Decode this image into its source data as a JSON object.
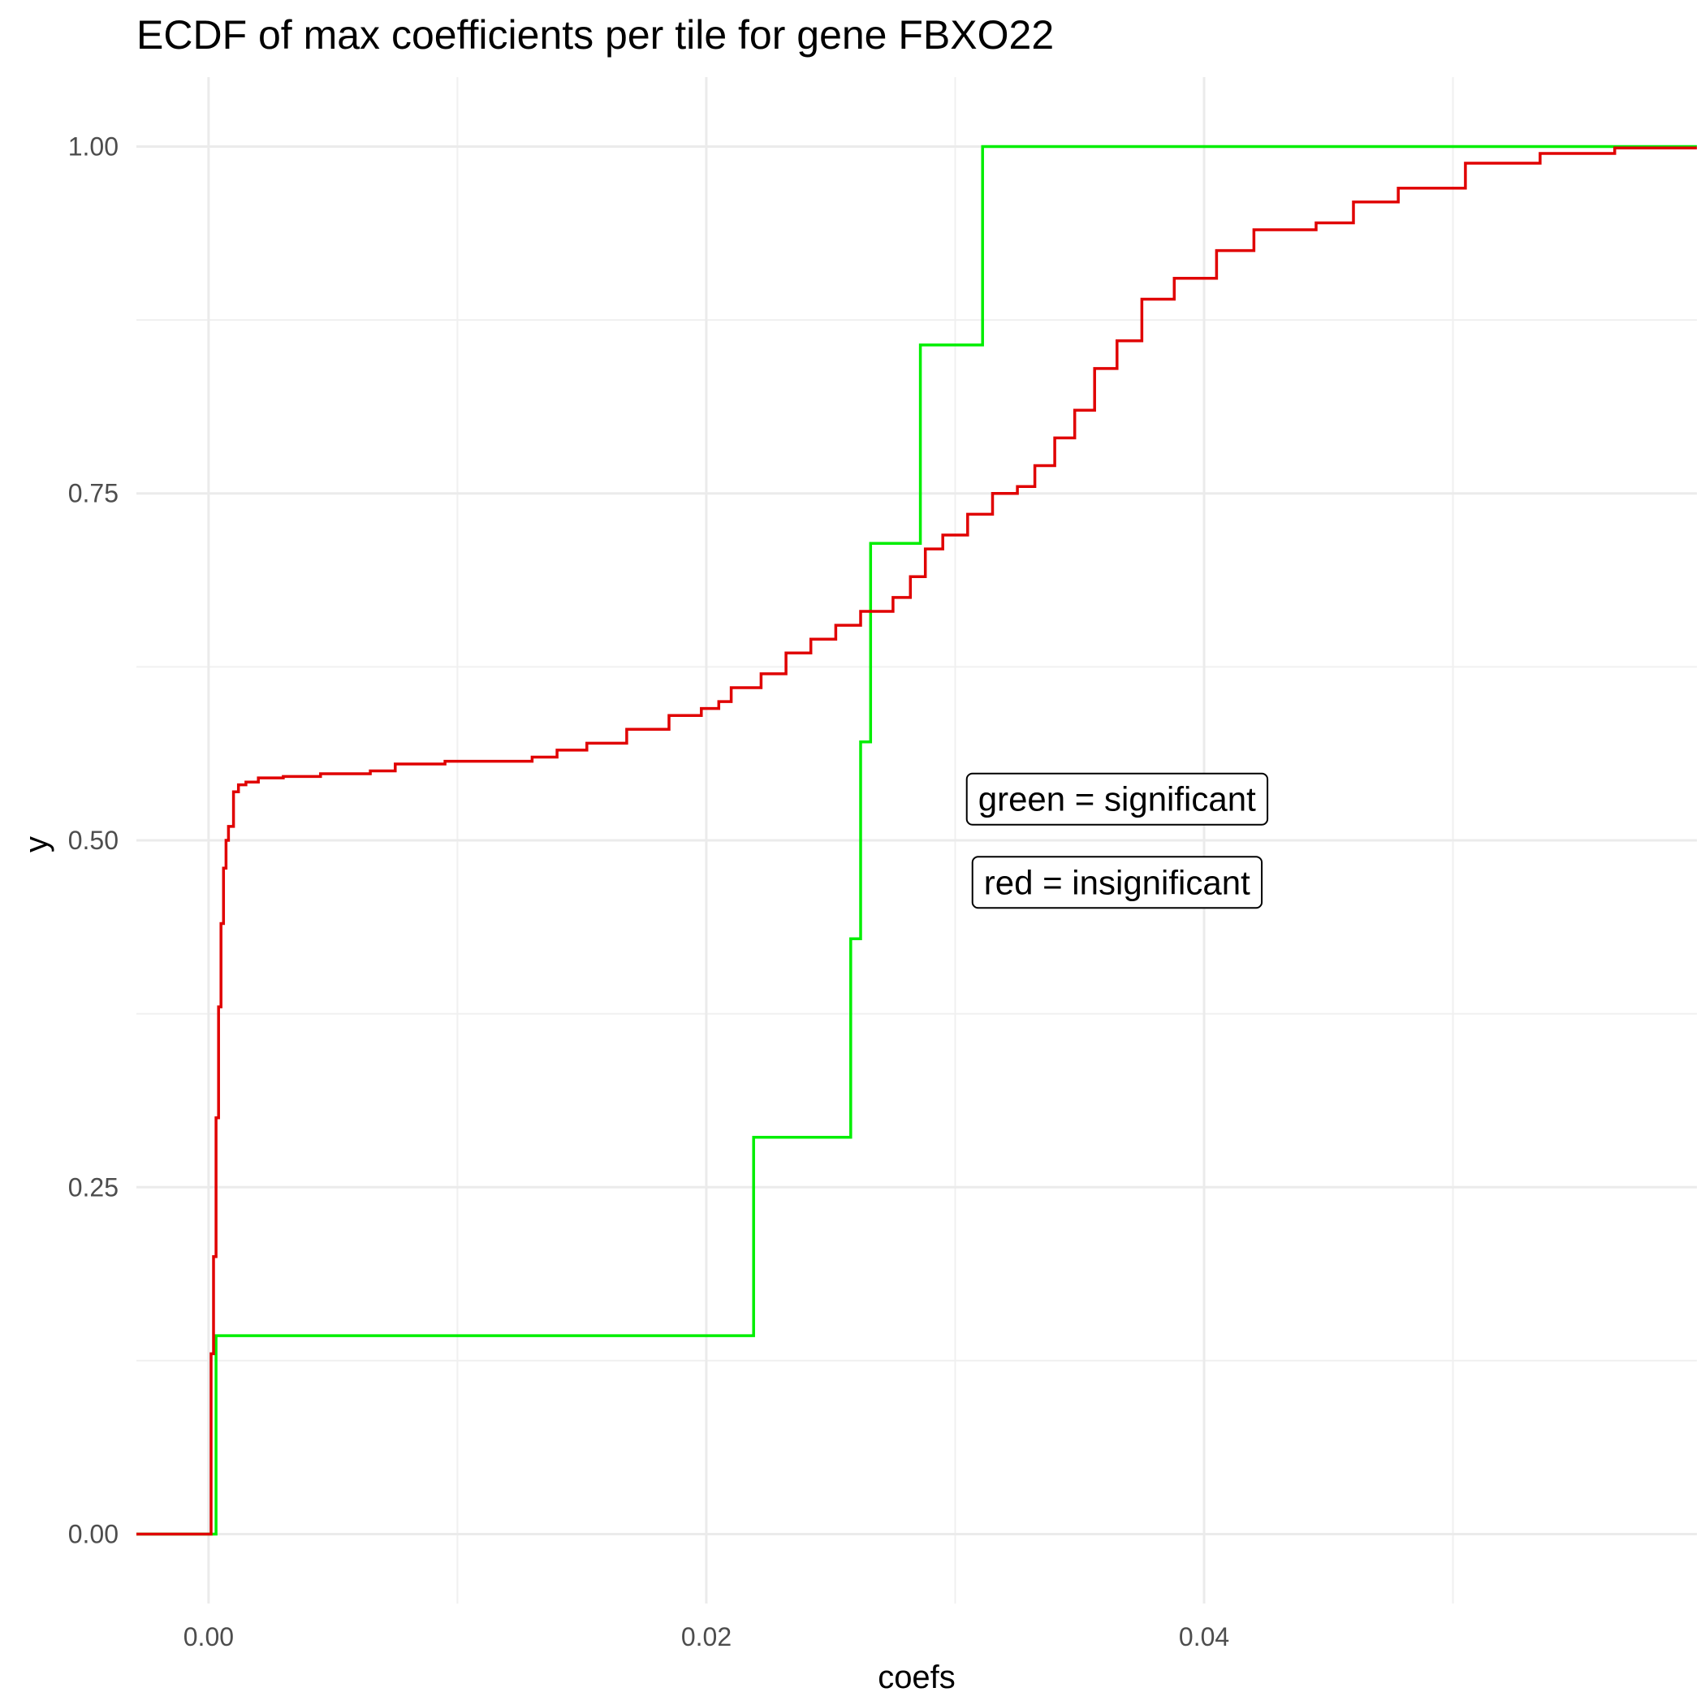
{
  "chart_data": {
    "type": "line",
    "step": true,
    "title": "ECDF of max coefficients per tile for gene FBXO22",
    "xlabel": "coefs",
    "ylabel": "y",
    "xlim": [
      -0.0029,
      0.0598
    ],
    "ylim": [
      -0.05,
      1.05
    ],
    "x_ticks": [
      0.0,
      0.02,
      0.04
    ],
    "x_tick_labels": [
      "0.00",
      "0.02",
      "0.04"
    ],
    "y_ticks": [
      0.0,
      0.25,
      0.5,
      0.75,
      1.0
    ],
    "y_tick_labels": [
      "0.00",
      "0.25",
      "0.50",
      "0.75",
      "1.00"
    ],
    "grid": true,
    "legend": "none",
    "series": [
      {
        "color": "#00ee00",
        "x": [
          -0.0029,
          0.0003,
          0.0003,
          0.0219,
          0.0219,
          0.0258,
          0.0258,
          0.0262,
          0.0262,
          0.0266,
          0.0266,
          0.0286,
          0.0286,
          0.0311,
          0.0311,
          0.0598
        ],
        "y": [
          0.0,
          0.0,
          0.143,
          0.143,
          0.286,
          0.286,
          0.429,
          0.429,
          0.571,
          0.571,
          0.714,
          0.714,
          0.857,
          0.857,
          1.0,
          1.0
        ]
      },
      {
        "color": "#e00000",
        "x": [
          -0.0029,
          0.0,
          0.0001,
          0.0002,
          0.0003,
          0.0004,
          0.0005,
          0.0006,
          0.0007,
          0.0008,
          0.001,
          0.0012,
          0.0015,
          0.002,
          0.003,
          0.0045,
          0.0065,
          0.0075,
          0.0095,
          0.0118,
          0.013,
          0.014,
          0.0152,
          0.0168,
          0.0185,
          0.0198,
          0.0205,
          0.021,
          0.0222,
          0.0232,
          0.0242,
          0.0252,
          0.0262,
          0.0275,
          0.0282,
          0.0288,
          0.0295,
          0.0305,
          0.0315,
          0.0325,
          0.0332,
          0.034,
          0.0348,
          0.0356,
          0.0365,
          0.0375,
          0.0388,
          0.0405,
          0.042,
          0.0445,
          0.046,
          0.0478,
          0.0505,
          0.0535,
          0.0565,
          0.0598
        ],
        "y": [
          0.0,
          0.0,
          0.13,
          0.2,
          0.3,
          0.38,
          0.44,
          0.48,
          0.5,
          0.51,
          0.535,
          0.54,
          0.542,
          0.545,
          0.546,
          0.548,
          0.55,
          0.555,
          0.557,
          0.557,
          0.56,
          0.565,
          0.57,
          0.58,
          0.59,
          0.595,
          0.6,
          0.61,
          0.62,
          0.635,
          0.645,
          0.655,
          0.665,
          0.675,
          0.69,
          0.71,
          0.72,
          0.735,
          0.75,
          0.755,
          0.77,
          0.79,
          0.81,
          0.84,
          0.86,
          0.89,
          0.905,
          0.925,
          0.94,
          0.945,
          0.96,
          0.97,
          0.988,
          0.995,
          0.999,
          0.999
        ]
      }
    ],
    "annotations": [
      {
        "text": "green = significant",
        "x": 0.0365,
        "y": 0.53
      },
      {
        "text": "red = insignificant",
        "x": 0.0365,
        "y": 0.47
      }
    ]
  }
}
